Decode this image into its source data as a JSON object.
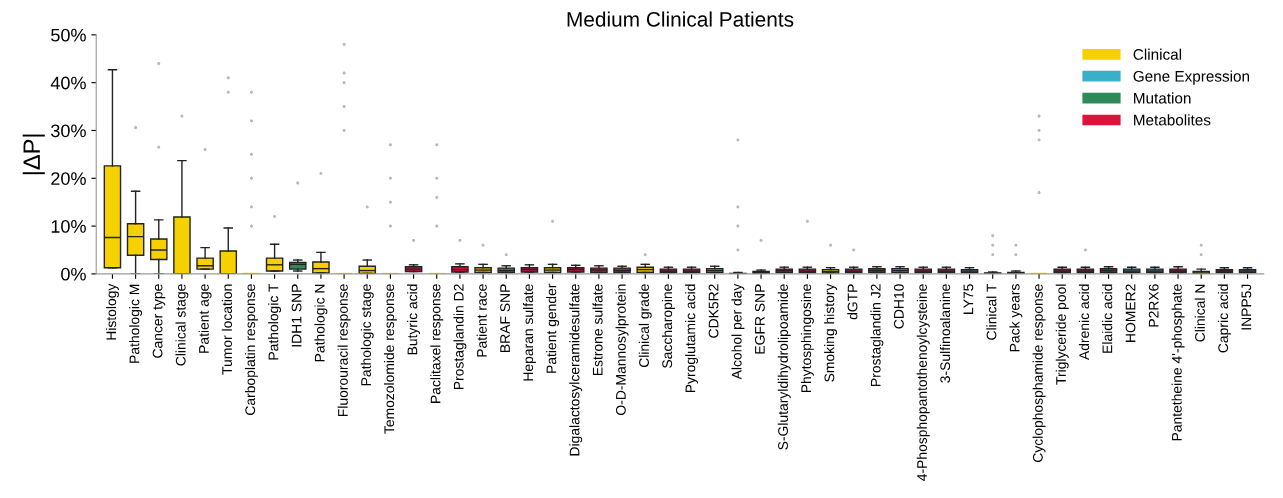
{
  "chart_data": {
    "type": "box",
    "title": "Medium Clinical Patients",
    "ylabel": "|ΔP|",
    "categories": [
      "Histology",
      "Pathologic M",
      "Cancer type",
      "Clinical stage",
      "Patient age",
      "Tumor location",
      "Carboplatin response",
      "Pathologic T",
      "IDH1 SNP",
      "Pathologic N",
      "Fluorouracil response",
      "Pathologic stage",
      "Temozolomide response",
      "Butyric acid",
      "Paclitaxel response",
      "Prostaglandin D2",
      "Patient race",
      "BRAF SNP",
      "Heparan sulfate",
      "Patient gender",
      "Digalactosylceramidesulfate",
      "Estrone sulfate",
      "O-D-Mannosylprotein",
      "Clinical grade",
      "Saccharopine",
      "Pyroglutamic acid",
      "CDK5R2",
      "Alcohol per day",
      "EGFR SNP",
      "S-Glutaryldihydrolipoamide",
      "Phytosphingosine",
      "Smoking history",
      "dGTP",
      "Prostaglandin J2",
      "CDH10",
      "4-Phosphopantothenoylcysteine",
      "3-Sulfinoalanine",
      "LY75",
      "Clinical T",
      "Pack years",
      "Cyclophosphamide response",
      "Triglyceride pool",
      "Adrenic acid",
      "Elaidic acid",
      "HOMER2",
      "P2RX6",
      "Pantetheine 4'-phosphate",
      "Clinical N",
      "Capric acid",
      "INPP5J"
    ],
    "series": [
      {
        "name": "Clinical",
        "color": "#f7d000",
        "boxes": [
          {
            "low": 1.3,
            "q1": 1.3,
            "median": 7.6,
            "q3": 22.6,
            "high": 42.7
          },
          {
            "low": 0,
            "q1": 3.9,
            "median": 7.8,
            "q3": 10.5,
            "high": 17.3,
            "outliers": [
              30.6
            ]
          },
          {
            "low": 0,
            "q1": 3.0,
            "median": 5.0,
            "q3": 7.3,
            "high": 11.3,
            "outliers": [
              26.5,
              44
            ]
          },
          {
            "low": 0,
            "q1": 0,
            "median": 0,
            "q3": 11.9,
            "high": 23.7,
            "outliers": [
              33
            ]
          },
          {
            "low": 1.0,
            "q1": 1.0,
            "median": 1.7,
            "q3": 3.3,
            "high": 5.5,
            "outliers": [
              26
            ]
          },
          {
            "low": 0,
            "q1": 0,
            "median": 0,
            "q3": 4.8,
            "high": 9.6,
            "outliers": [
              38,
              41
            ]
          },
          {
            "low": 0,
            "q1": 0,
            "median": 0,
            "q3": 0,
            "high": 0,
            "outliers": [
              10,
              14,
              20,
              25,
              32,
              38
            ]
          },
          {
            "low": 0.6,
            "q1": 0.6,
            "median": 1.9,
            "q3": 3.3,
            "high": 6.2,
            "outliers": [
              12
            ]
          },
          null,
          {
            "low": 0.2,
            "q1": 0.2,
            "median": 1.1,
            "q3": 2.5,
            "high": 4.5,
            "outliers": [
              21
            ]
          },
          {
            "low": 0,
            "q1": 0,
            "median": 0,
            "q3": 0,
            "high": 0,
            "outliers": [
              30,
              35,
              40,
              42,
              48
            ]
          },
          {
            "low": 0.1,
            "q1": 0.1,
            "median": 0.7,
            "q3": 1.6,
            "high": 2.9,
            "outliers": [
              14
            ]
          },
          {
            "low": 0,
            "q1": 0,
            "median": 0,
            "q3": 0,
            "high": 0,
            "outliers": [
              10,
              15,
              20,
              27
            ]
          },
          null,
          {
            "low": 0,
            "q1": 0,
            "median": 0,
            "q3": 0,
            "high": 0,
            "outliers": [
              10,
              16,
              20,
              27
            ]
          },
          null,
          {
            "low": 0.3,
            "q1": 0.3,
            "median": 0.8,
            "q3": 1.3,
            "high": 2.0,
            "outliers": [
              6
            ]
          },
          null,
          null,
          {
            "low": 0.3,
            "q1": 0.3,
            "median": 0.8,
            "q3": 1.3,
            "high": 2.0,
            "outliers": [
              11
            ]
          },
          null,
          null,
          null,
          {
            "low": 0.3,
            "q1": 0.3,
            "median": 0.9,
            "q3": 1.4,
            "high": 2.0,
            "outliers": [
              4
            ]
          },
          null,
          null,
          null,
          {
            "low": 0,
            "q1": 0,
            "median": 0,
            "q3": 0.1,
            "high": 0.3,
            "outliers": [
              5,
              10,
              14,
              28
            ]
          },
          null,
          null,
          null,
          {
            "low": 0.2,
            "q1": 0.2,
            "median": 0.5,
            "q3": 0.9,
            "high": 1.3,
            "outliers": [
              6
            ]
          },
          null,
          null,
          null,
          null,
          null,
          null,
          {
            "low": 0,
            "q1": 0,
            "median": 0.1,
            "q3": 0.2,
            "high": 0.4,
            "outliers": [
              4,
              6,
              8
            ]
          },
          {
            "low": 0,
            "q1": 0,
            "median": 0.1,
            "q3": 0.3,
            "high": 0.6,
            "outliers": [
              4,
              6
            ]
          },
          {
            "low": 0,
            "q1": 0,
            "median": 0,
            "q3": 0,
            "high": 0,
            "outliers": [
              17,
              28,
              30,
              33
            ]
          },
          null,
          null,
          null,
          null,
          null,
          null,
          {
            "low": 0,
            "q1": 0,
            "median": 0.2,
            "q3": 0.5,
            "high": 1.0,
            "outliers": [
              4,
              6
            ]
          },
          null,
          null
        ]
      },
      {
        "name": "Gene Expression",
        "color": "#3ab0c8",
        "boxes": [
          null,
          null,
          null,
          null,
          null,
          null,
          null,
          null,
          null,
          null,
          null,
          null,
          null,
          null,
          null,
          null,
          null,
          null,
          null,
          null,
          null,
          null,
          null,
          null,
          null,
          null,
          {
            "low": 0.3,
            "q1": 0.3,
            "median": 0.7,
            "q3": 1.1,
            "high": 1.6
          },
          null,
          null,
          null,
          null,
          null,
          null,
          null,
          {
            "low": 0.3,
            "q1": 0.3,
            "median": 0.7,
            "q3": 1.1,
            "high": 1.5
          },
          null,
          null,
          {
            "low": 0.3,
            "q1": 0.3,
            "median": 0.6,
            "q3": 0.9,
            "high": 1.3
          },
          null,
          null,
          null,
          null,
          null,
          null,
          {
            "low": 0.3,
            "q1": 0.3,
            "median": 0.6,
            "q3": 1.0,
            "high": 1.4
          },
          {
            "low": 0.3,
            "q1": 0.3,
            "median": 0.6,
            "q3": 1.0,
            "high": 1.4
          },
          null,
          null,
          null,
          {
            "low": 0.3,
            "q1": 0.3,
            "median": 0.6,
            "q3": 0.9,
            "high": 1.3
          }
        ]
      },
      {
        "name": "Mutation",
        "color": "#2e8b57",
        "boxes": [
          null,
          null,
          null,
          null,
          null,
          null,
          null,
          null,
          {
            "low": 0.6,
            "q1": 1.0,
            "median": 2.0,
            "q3": 2.4,
            "high": 2.9,
            "outliers": [
              19
            ]
          },
          null,
          null,
          null,
          null,
          null,
          null,
          null,
          null,
          {
            "low": 0.3,
            "q1": 0.3,
            "median": 0.7,
            "q3": 1.2,
            "high": 1.7,
            "outliers": [
              4
            ]
          },
          null,
          null,
          null,
          null,
          null,
          null,
          null,
          null,
          null,
          null,
          {
            "low": 0.1,
            "q1": 0.1,
            "median": 0.3,
            "q3": 0.5,
            "high": 0.8,
            "outliers": [
              7
            ]
          },
          null,
          null,
          null,
          null,
          null,
          null,
          null,
          null,
          null,
          null,
          null,
          null,
          null,
          null,
          null,
          null,
          null,
          null,
          null,
          null,
          null
        ]
      },
      {
        "name": "Metabolites",
        "color": "#dc143c",
        "boxes": [
          null,
          null,
          null,
          null,
          null,
          null,
          null,
          null,
          null,
          null,
          null,
          null,
          null,
          {
            "low": 0.5,
            "q1": 0.5,
            "median": 1.0,
            "q3": 1.5,
            "high": 1.9,
            "outliers": [
              7
            ]
          },
          null,
          {
            "low": 0.4,
            "q1": 0.4,
            "median": 0.9,
            "q3": 1.5,
            "high": 2.1,
            "outliers": [
              7
            ]
          },
          null,
          null,
          {
            "low": 0.4,
            "q1": 0.4,
            "median": 0.9,
            "q3": 1.3,
            "high": 1.9
          },
          null,
          {
            "low": 0.4,
            "q1": 0.4,
            "median": 0.9,
            "q3": 1.3,
            "high": 1.8
          },
          {
            "low": 0.3,
            "q1": 0.3,
            "median": 0.8,
            "q3": 1.2,
            "high": 1.7
          },
          {
            "low": 0.3,
            "q1": 0.3,
            "median": 0.7,
            "q3": 1.2,
            "high": 1.6
          },
          null,
          {
            "low": 0.3,
            "q1": 0.3,
            "median": 0.6,
            "q3": 1.0,
            "high": 1.4
          },
          {
            "low": 0.3,
            "q1": 0.3,
            "median": 0.6,
            "q3": 1.0,
            "high": 1.4
          },
          null,
          null,
          null,
          {
            "low": 0.3,
            "q1": 0.3,
            "median": 0.7,
            "q3": 1.0,
            "high": 1.4
          },
          {
            "low": 0.3,
            "q1": 0.3,
            "median": 0.6,
            "q3": 1.0,
            "high": 1.4,
            "outliers": [
              11
            ]
          },
          null,
          {
            "low": 0.3,
            "q1": 0.3,
            "median": 0.6,
            "q3": 1.0,
            "high": 1.4,
            "outliers": [
              5
            ]
          },
          {
            "low": 0.3,
            "q1": 0.3,
            "median": 0.7,
            "q3": 1.1,
            "high": 1.5
          },
          null,
          {
            "low": 0.3,
            "q1": 0.3,
            "median": 0.6,
            "q3": 1.0,
            "high": 1.4
          },
          {
            "low": 0.3,
            "q1": 0.3,
            "median": 0.6,
            "q3": 1.0,
            "high": 1.4
          },
          null,
          null,
          null,
          null,
          {
            "low": 0.3,
            "q1": 0.3,
            "median": 0.6,
            "q3": 1.0,
            "high": 1.4
          },
          {
            "low": 0.3,
            "q1": 0.3,
            "median": 0.6,
            "q3": 1.0,
            "high": 1.4,
            "outliers": [
              5
            ]
          },
          {
            "low": 0.3,
            "q1": 0.3,
            "median": 0.7,
            "q3": 1.1,
            "high": 1.5
          },
          null,
          null,
          {
            "low": 0.3,
            "q1": 0.3,
            "median": 0.6,
            "q3": 1.0,
            "high": 1.5
          },
          null,
          {
            "low": 0.3,
            "q1": 0.3,
            "median": 0.6,
            "q3": 0.9,
            "high": 1.3
          },
          null
        ]
      }
    ],
    "ylim": [
      0,
      50
    ],
    "yticks": [
      {
        "value": 0,
        "label": "0%"
      },
      {
        "value": 10,
        "label": "10%"
      },
      {
        "value": 20,
        "label": "20%"
      },
      {
        "value": 30,
        "label": "30%"
      },
      {
        "value": 40,
        "label": "40%"
      },
      {
        "value": 50,
        "label": "50%"
      }
    ],
    "legend": "top right"
  }
}
